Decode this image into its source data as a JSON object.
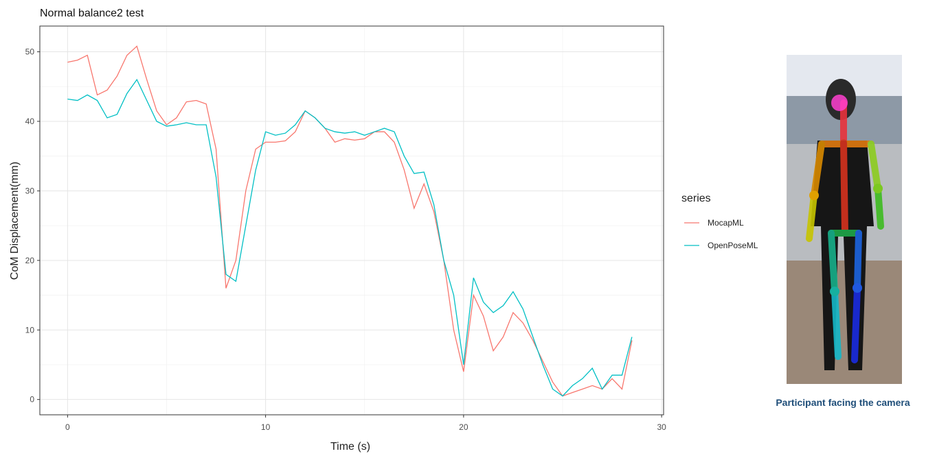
{
  "chart_data": {
    "type": "line",
    "title": "Normal balance2 test",
    "x_label": "Time (s)",
    "y_label": "CoM Displacement(mm)",
    "legend_title": "series",
    "legend": "right",
    "grid": true,
    "xlim": [
      -1.4,
      30.1
    ],
    "ylim": [
      -2.2,
      53.7
    ],
    "xticks": [
      0,
      10,
      20,
      30
    ],
    "yticks": [
      0,
      10,
      20,
      30,
      40,
      50
    ],
    "x_minor_ticks": [
      5,
      15,
      25
    ],
    "y_minor_ticks": [
      5,
      15,
      25,
      35,
      45
    ],
    "x": [
      0,
      0.5,
      1,
      1.5,
      2,
      2.5,
      3,
      3.5,
      4,
      4.5,
      5,
      5.5,
      6,
      6.5,
      7,
      7.5,
      8,
      8.5,
      9,
      9.5,
      10,
      10.5,
      11,
      11.5,
      12,
      12.5,
      13,
      13.5,
      14,
      14.5,
      15,
      15.5,
      16,
      16.5,
      17,
      17.5,
      18,
      18.5,
      19,
      19.5,
      20,
      20.5,
      21,
      21.5,
      22,
      22.5,
      23,
      23.5,
      24,
      24.5,
      25,
      25.5,
      26,
      26.5,
      27,
      27.5,
      28,
      28.5
    ],
    "series": [
      {
        "name": "MocapML",
        "color": "#f8766d",
        "values": [
          48.5,
          48.8,
          49.5,
          43.8,
          44.5,
          46.5,
          49.5,
          50.8,
          46,
          41.5,
          39.5,
          40.5,
          42.8,
          43,
          42.5,
          36,
          16,
          20,
          30,
          36,
          37,
          37,
          37.2,
          38.5,
          41.5,
          40.5,
          39,
          37,
          37.5,
          37.3,
          37.5,
          38.5,
          38.5,
          37,
          33,
          27.5,
          31,
          27,
          20,
          10,
          4,
          15,
          12,
          7,
          9,
          12.5,
          11,
          8.5,
          5.5,
          2.5,
          0.5,
          1,
          1.5,
          2,
          1.5,
          3,
          1.5,
          8.5
        ]
      },
      {
        "name": "OpenPoseML",
        "color": "#00bfc4",
        "values": [
          43.2,
          43,
          43.8,
          43,
          40.5,
          41,
          44,
          46,
          43,
          40,
          39.3,
          39.5,
          39.8,
          39.5,
          39.5,
          32,
          18,
          17,
          25,
          33,
          38.5,
          38,
          38.3,
          39.5,
          41.5,
          40.5,
          39,
          38.5,
          38.3,
          38.5,
          38,
          38.5,
          39,
          38.5,
          35,
          32.5,
          32.7,
          28,
          20,
          15,
          5,
          17.5,
          14,
          12.5,
          13.5,
          15.5,
          13,
          9,
          5,
          1.5,
          0.5,
          2,
          3,
          4.5,
          1.5,
          3.5,
          3.5,
          9
        ]
      }
    ]
  },
  "photo": {
    "caption": "Participant facing the camera"
  }
}
